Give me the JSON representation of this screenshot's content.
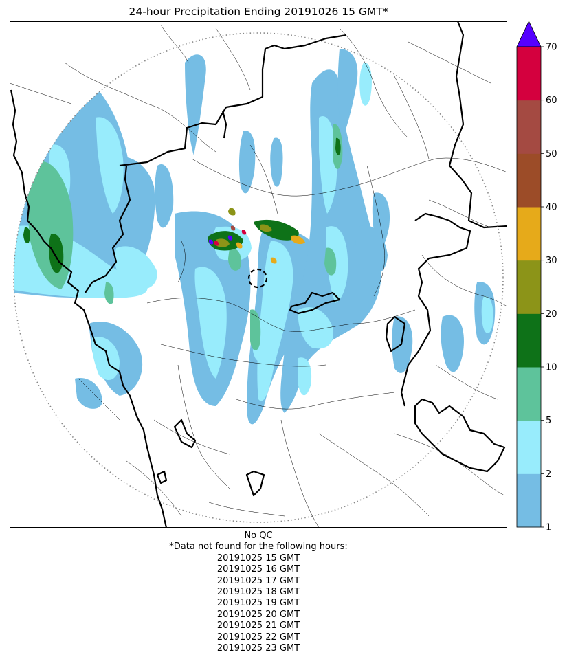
{
  "title": "24-hour Precipitation Ending 20191026 15 GMT*",
  "colorbar": {
    "extend": "max",
    "extend_color": "#5500ff",
    "levels": [
      {
        "from": 1,
        "to": 2,
        "color": "#75bde4"
      },
      {
        "from": 2,
        "to": 5,
        "color": "#98ecfc"
      },
      {
        "from": 5,
        "to": 10,
        "color": "#5ec39b"
      },
      {
        "from": 10,
        "to": 20,
        "color": "#0e7218"
      },
      {
        "from": 20,
        "to": 30,
        "color": "#8c9418"
      },
      {
        "from": 30,
        "to": 40,
        "color": "#e6aa1a"
      },
      {
        "from": 40,
        "to": 50,
        "color": "#9c4c28"
      },
      {
        "from": 50,
        "to": 60,
        "color": "#a44a42"
      },
      {
        "from": 60,
        "to": 70,
        "color": "#d4003e"
      }
    ],
    "tick_labels": [
      "1",
      "2",
      "5",
      "10",
      "20",
      "30",
      "40",
      "50",
      "60",
      "70"
    ]
  },
  "footer": {
    "qc": "No QC",
    "note": "*Data not found for the following hours:",
    "missing_hours": [
      "20191025 15 GMT",
      "20191025 16 GMT",
      "20191025 17 GMT",
      "20191025 18 GMT",
      "20191025 19 GMT",
      "20191025 20 GMT",
      "20191025 21 GMT",
      "20191025 22 GMT",
      "20191025 23 GMT"
    ]
  }
}
